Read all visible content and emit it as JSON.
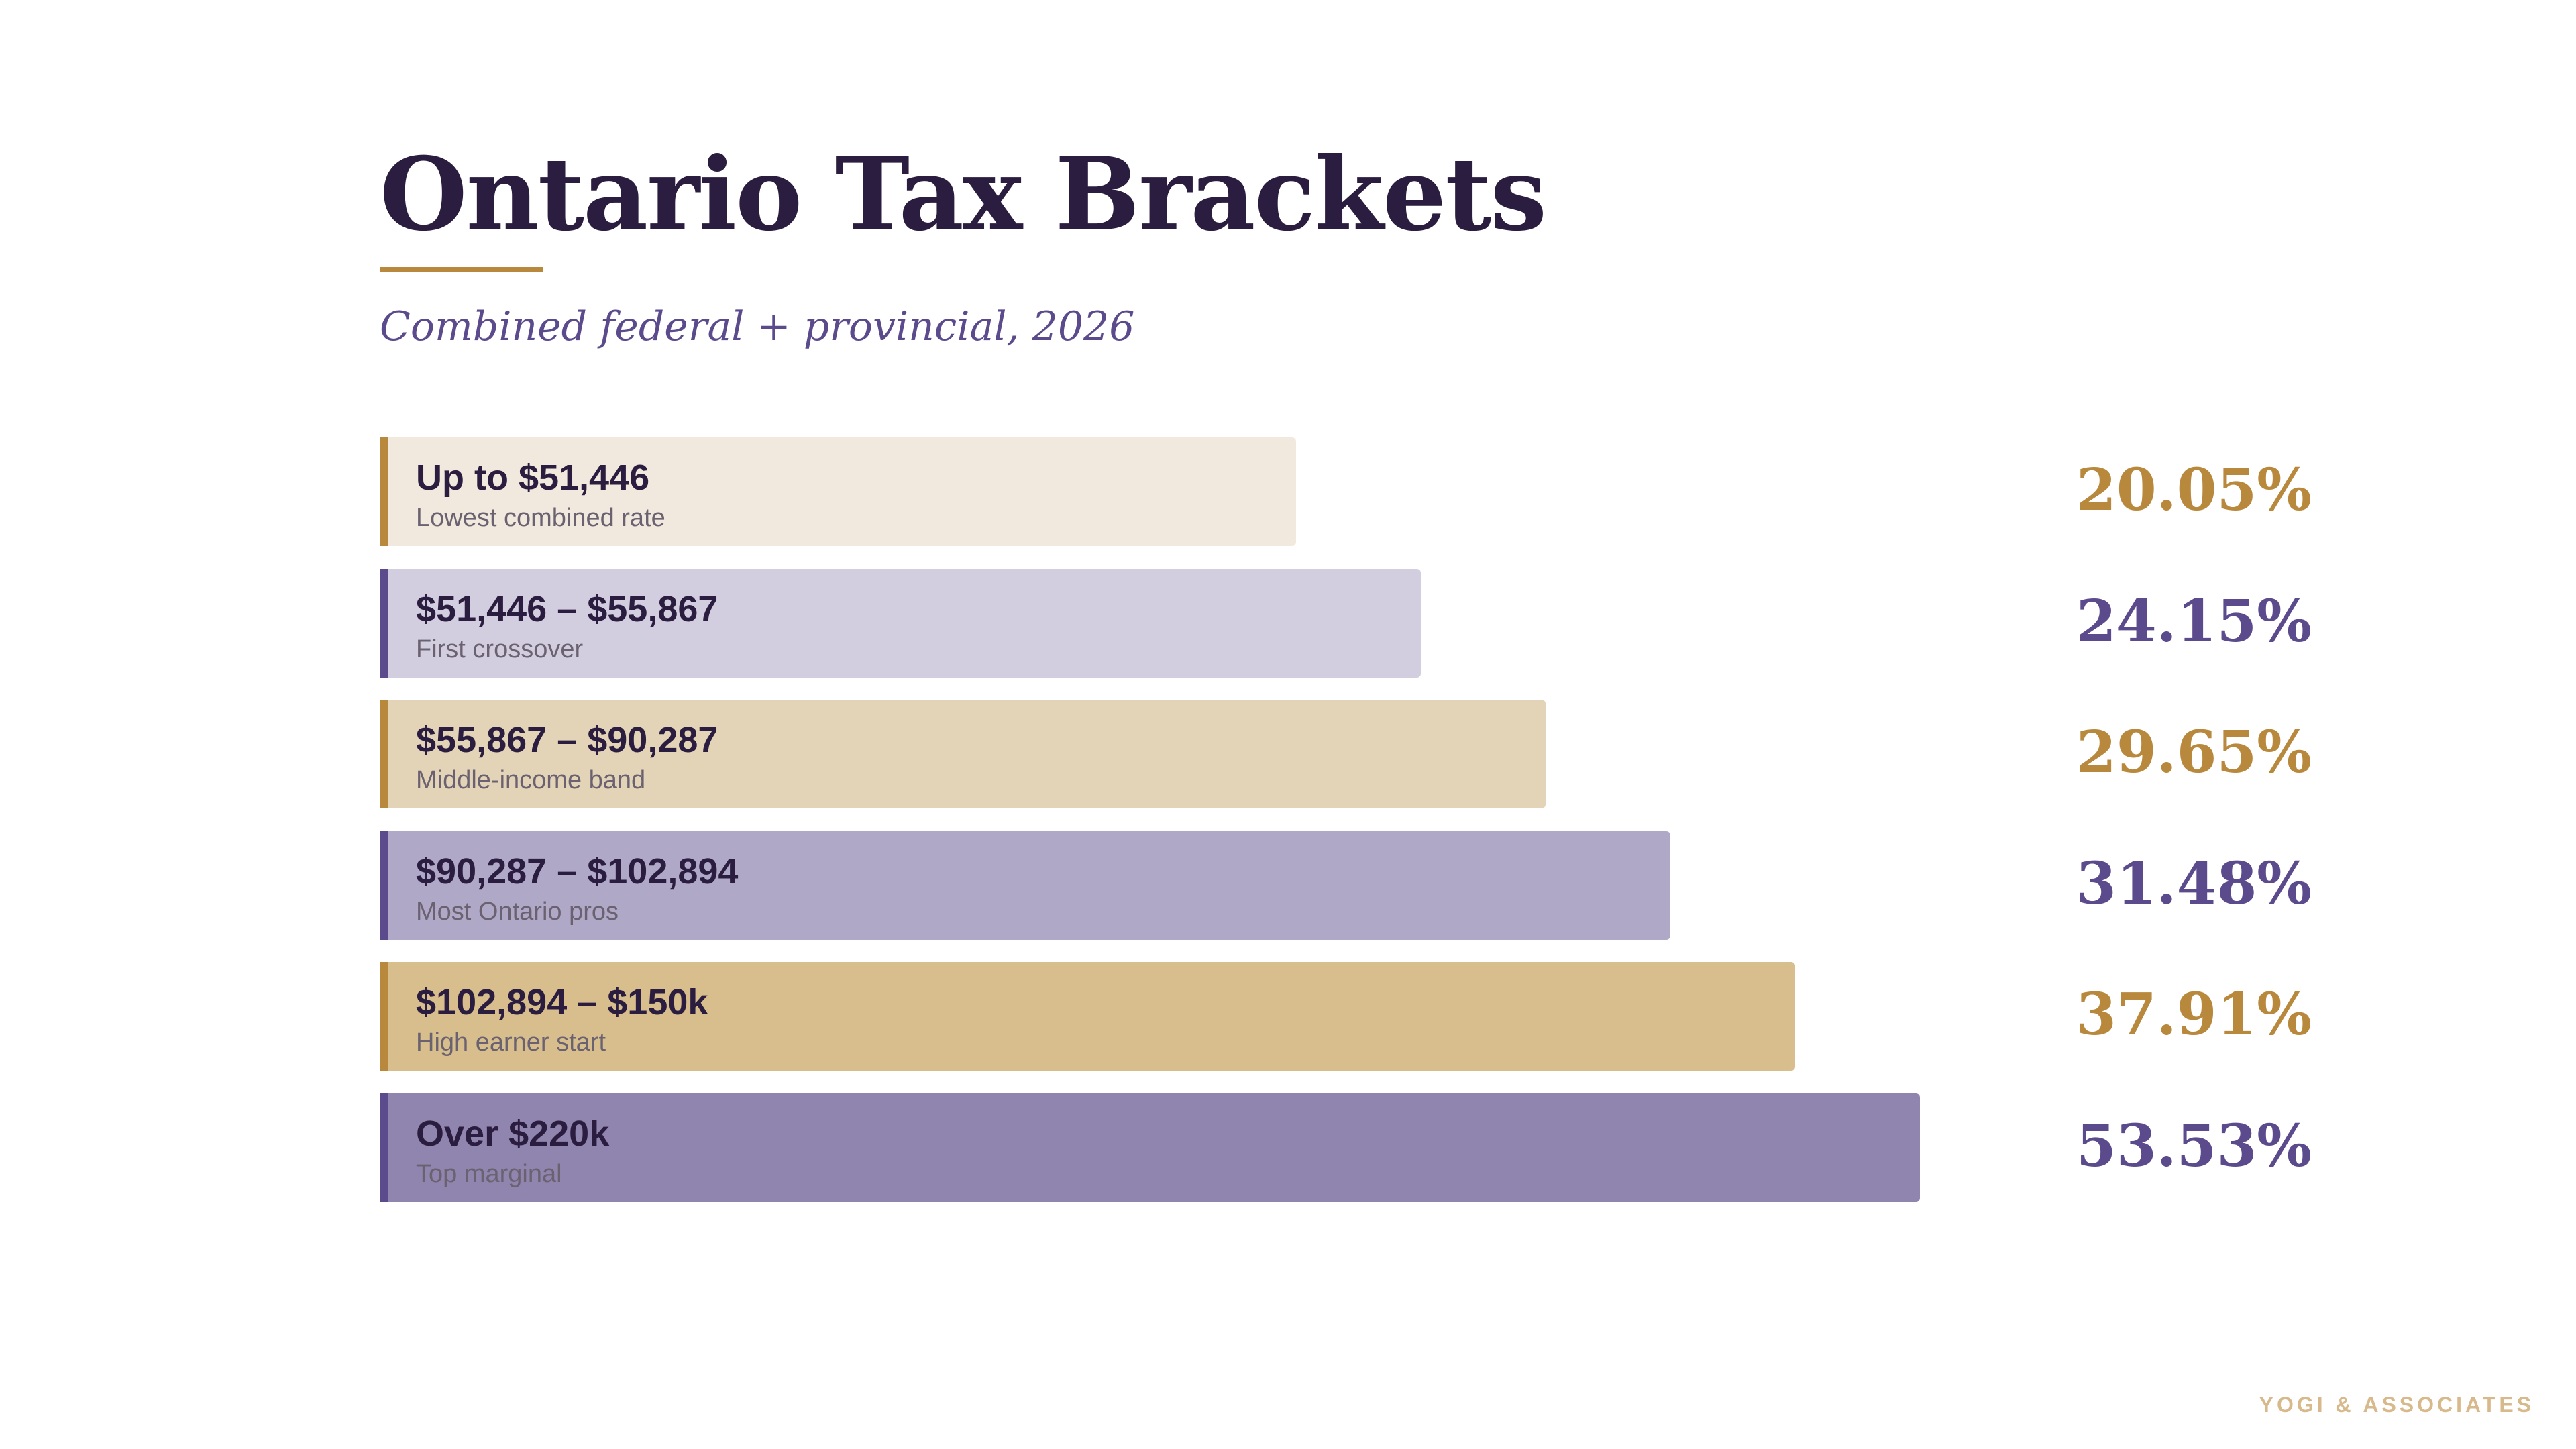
{
  "title": "Ontario Tax Brackets",
  "subtitle": "Combined federal + provincial, 2026",
  "footer": "YOGI & ASSOCIATES",
  "colors": {
    "title": "#2b1d3f",
    "accent_gold": "#b8883c",
    "accent_purple": "#5b4a8c"
  },
  "chart_data": {
    "type": "bar",
    "orientation": "horizontal",
    "categories": [
      "Up to $51,446",
      "$51,446 – $55,867",
      "$55,867 – $90,287",
      "$90,287 – $102,894",
      "$102,894 – $150k",
      "Over $220k"
    ],
    "notes": [
      "Lowest combined rate",
      "First crossover",
      "Middle-income band",
      "Most Ontario pros",
      "High earner start",
      "Top marginal"
    ],
    "rate_labels": [
      "20.05%",
      "24.15%",
      "29.65%",
      "31.48%",
      "37.91%",
      "53.53%"
    ],
    "bar_order": [
      1,
      2,
      3,
      4,
      5,
      6
    ],
    "bar_colors": [
      "#f1e9dd",
      "#d3cedf",
      "#e4d4b7",
      "#b0a8c7",
      "#d8bd8d",
      "#9085ae"
    ],
    "edge_colors": [
      "#b8883c",
      "#5b4a8c",
      "#b8883c",
      "#5b4a8c",
      "#b8883c",
      "#5b4a8c"
    ],
    "rate_colors": [
      "#b8883c",
      "#5b4a8c",
      "#b8883c",
      "#5b4a8c",
      "#b8883c",
      "#5b4a8c"
    ]
  }
}
